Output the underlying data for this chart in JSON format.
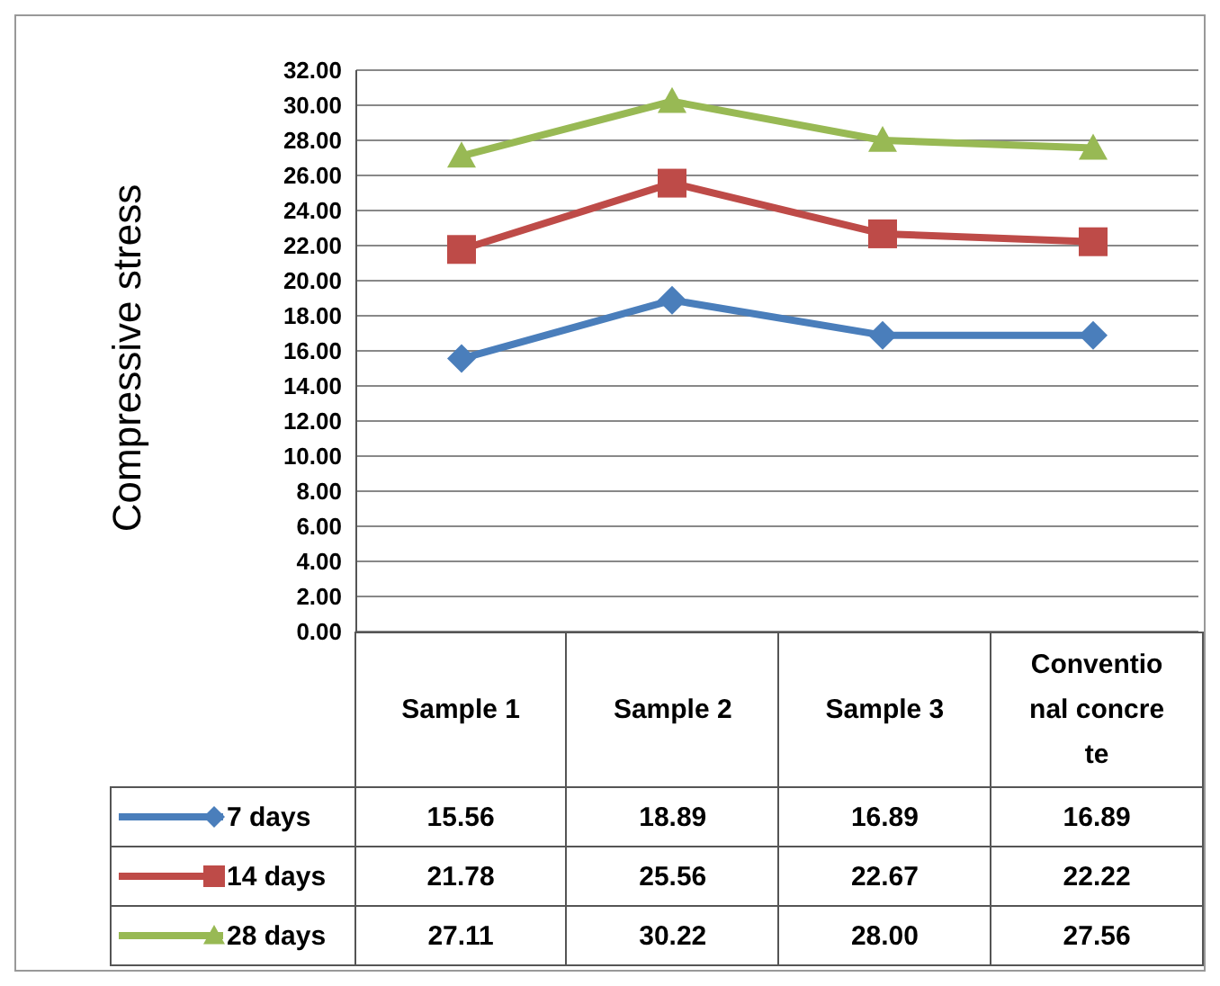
{
  "chart_data": {
    "type": "line",
    "ylabel": "Compressive stress",
    "categories": [
      "Sample 1",
      "Sample 2",
      "Sample 3",
      "Conventional concrete"
    ],
    "series": [
      {
        "name": "7 days",
        "color": "#4a7ebb",
        "marker": "diamond",
        "values": [
          15.56,
          18.89,
          16.89,
          16.89
        ],
        "value_labels": [
          "15.56",
          "18.89",
          "16.89",
          "16.89"
        ]
      },
      {
        "name": "14 days",
        "color": "#be4b48",
        "marker": "square",
        "values": [
          21.78,
          25.56,
          22.67,
          22.22
        ],
        "value_labels": [
          "21.78",
          "25.56",
          "22.67",
          "22.22"
        ]
      },
      {
        "name": "28 days",
        "color": "#98b954",
        "marker": "triangle",
        "values": [
          27.11,
          30.22,
          28.0,
          27.56
        ],
        "value_labels": [
          "27.11",
          "30.22",
          "28.00",
          "27.56"
        ]
      }
    ],
    "ylim": [
      0,
      32
    ],
    "yticks": [
      {
        "value": 0,
        "label": "0.00"
      },
      {
        "value": 2,
        "label": "2.00"
      },
      {
        "value": 4,
        "label": "4.00"
      },
      {
        "value": 6,
        "label": "6.00"
      },
      {
        "value": 8,
        "label": "8.00"
      },
      {
        "value": 10,
        "label": "10.00"
      },
      {
        "value": 12,
        "label": "12.00"
      },
      {
        "value": 14,
        "label": "14.00"
      },
      {
        "value": 16,
        "label": "16.00"
      },
      {
        "value": 18,
        "label": "18.00"
      },
      {
        "value": 20,
        "label": "20.00"
      },
      {
        "value": 22,
        "label": "22.00"
      },
      {
        "value": 24,
        "label": "24.00"
      },
      {
        "value": 26,
        "label": "26.00"
      },
      {
        "value": 28,
        "label": "28.00"
      },
      {
        "value": 30,
        "label": "30.00"
      },
      {
        "value": 32,
        "label": "32.00"
      }
    ],
    "grid": "y",
    "legend": "bottom",
    "tick_labels": "y"
  }
}
